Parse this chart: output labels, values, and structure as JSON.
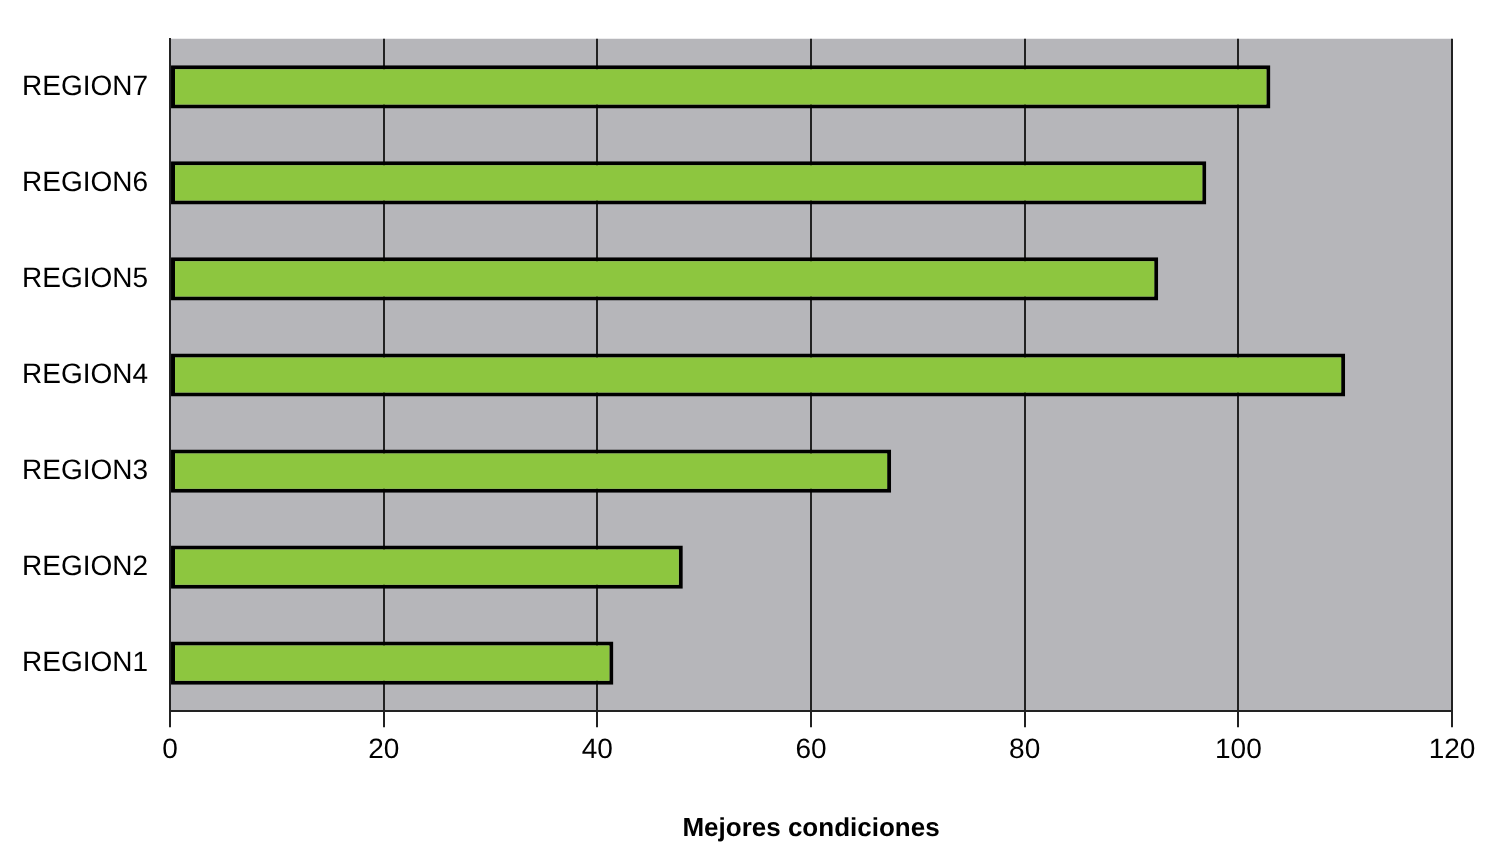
{
  "chart_data": {
    "type": "bar",
    "orientation": "horizontal",
    "xlabel": "Mejores condiciones",
    "categories": [
      "REGION7",
      "REGION6",
      "REGION5",
      "REGION4",
      "REGION3",
      "REGION2",
      "REGION1"
    ],
    "values": [
      103,
      97,
      92.5,
      110,
      67.5,
      48,
      41.5
    ],
    "color": "#8dc63f",
    "xlim": [
      0,
      120
    ],
    "xticks": [
      0,
      20,
      40,
      60,
      80,
      100,
      120
    ],
    "grid": "x",
    "legend": false
  }
}
